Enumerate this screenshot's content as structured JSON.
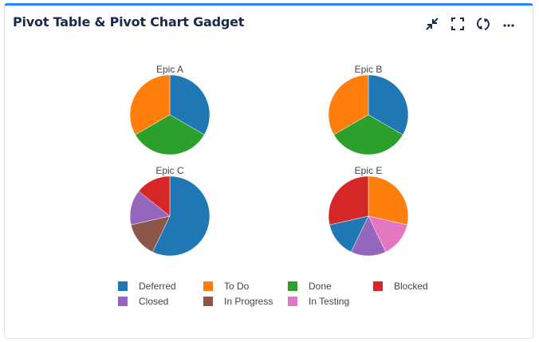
{
  "header": {
    "title": "Pivot Table & Pivot Chart Gadget"
  },
  "toolbar": {
    "icons": [
      "minimize-icon",
      "fullscreen-icon",
      "refresh-icon",
      "more-icon"
    ]
  },
  "colors": {
    "accent": "#2684ff",
    "title": "#172b4d"
  },
  "chart_data": {
    "type": "pie",
    "legend_position": "bottom",
    "legend": [
      {
        "name": "Deferred",
        "color": "#1f77b4"
      },
      {
        "name": "To Do",
        "color": "#ff7f0e"
      },
      {
        "name": "Done",
        "color": "#2ca02c"
      },
      {
        "name": "Blocked",
        "color": "#d62728"
      },
      {
        "name": "Closed",
        "color": "#9467bd"
      },
      {
        "name": "In Progress",
        "color": "#8c564b"
      },
      {
        "name": "In Testing",
        "color": "#e377c2"
      }
    ],
    "pies": [
      {
        "title": "Epic A",
        "slices": [
          {
            "name": "Deferred",
            "value": 1
          },
          {
            "name": "Done",
            "value": 1
          },
          {
            "name": "To Do",
            "value": 1
          }
        ]
      },
      {
        "title": "Epic B",
        "slices": [
          {
            "name": "Deferred",
            "value": 1
          },
          {
            "name": "Done",
            "value": 1
          },
          {
            "name": "To Do",
            "value": 1
          }
        ]
      },
      {
        "title": "Epic C",
        "slices": [
          {
            "name": "Deferred",
            "value": 4
          },
          {
            "name": "In Progress",
            "value": 1
          },
          {
            "name": "Closed",
            "value": 1
          },
          {
            "name": "Blocked",
            "value": 1
          }
        ]
      },
      {
        "title": "Epic E",
        "slices": [
          {
            "name": "To Do",
            "value": 2
          },
          {
            "name": "In Testing",
            "value": 1
          },
          {
            "name": "Closed",
            "value": 1
          },
          {
            "name": "Deferred",
            "value": 1
          },
          {
            "name": "Blocked",
            "value": 2
          }
        ]
      }
    ]
  }
}
